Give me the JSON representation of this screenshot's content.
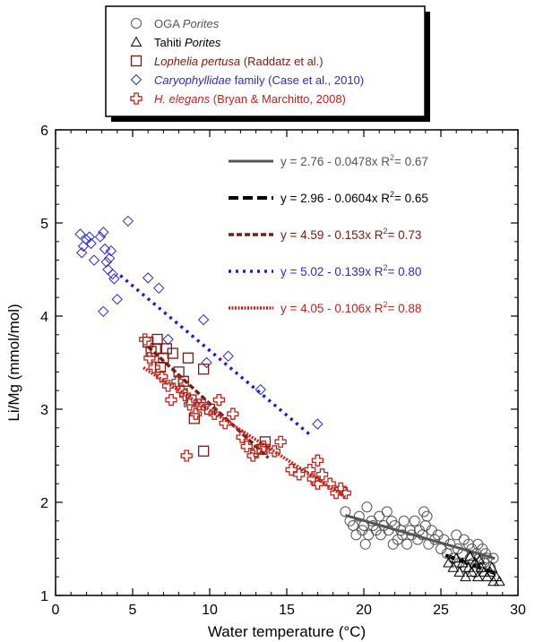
{
  "chart_data": {
    "type": "scatter",
    "title": "",
    "xlabel": "Water temperature (°C)",
    "ylabel": "Li/Mg (mmol/mol)",
    "xlim": [
      0,
      30
    ],
    "ylim": [
      1,
      6
    ],
    "x_ticks": [
      0,
      5,
      10,
      15,
      20,
      25,
      30
    ],
    "y_ticks": [
      1,
      2,
      3,
      4,
      5,
      6
    ],
    "grid": false,
    "legend_placement": "top-center",
    "legend": [
      {
        "marker": "circle",
        "color": "#555555",
        "text": "OGA ",
        "italic_text": "Porites",
        "suffix": ""
      },
      {
        "marker": "triangle",
        "color": "#000000",
        "text": "Tahiti ",
        "italic_text": "Porites",
        "suffix": ""
      },
      {
        "marker": "square",
        "color": "#7a1a10",
        "text": "",
        "italic_text": "Lophelia pertusa",
        "suffix": "  (Raddatz et al.)"
      },
      {
        "marker": "diamond",
        "color": "#2a2ad8",
        "text": "",
        "italic_text": "Caryophyllidae",
        "suffix": " family (Case et al., 2010)"
      },
      {
        "marker": "cross",
        "color": "#c0241c",
        "text": "",
        "italic_text": "H. elegans",
        "suffix": " (Bryan & Marchitto, 2008)"
      }
    ],
    "series": [
      {
        "marker": "diamond",
        "color": "#2a2ad8",
        "points": [
          [
            1.6,
            4.88
          ],
          [
            1.8,
            4.75
          ],
          [
            1.7,
            4.68
          ],
          [
            2.0,
            4.82
          ],
          [
            2.2,
            4.85
          ],
          [
            2.3,
            4.78
          ],
          [
            2.5,
            4.6
          ],
          [
            2.9,
            4.85
          ],
          [
            3.1,
            4.9
          ],
          [
            3.2,
            4.72
          ],
          [
            3.3,
            4.58
          ],
          [
            3.5,
            4.62
          ],
          [
            3.4,
            4.5
          ],
          [
            3.6,
            4.7
          ],
          [
            3.7,
            4.45
          ],
          [
            3.8,
            4.4
          ],
          [
            4.0,
            4.18
          ],
          [
            3.1,
            4.05
          ],
          [
            4.7,
            5.02
          ],
          [
            6.0,
            4.41
          ],
          [
            6.7,
            4.3
          ],
          [
            7.3,
            3.75
          ],
          [
            9.6,
            3.96
          ],
          [
            9.8,
            3.5
          ],
          [
            11.2,
            3.57
          ],
          [
            13.3,
            3.21
          ],
          [
            17.0,
            2.84
          ]
        ]
      },
      {
        "marker": "square",
        "color": "#7a1a10",
        "points": [
          [
            6.0,
            3.72
          ],
          [
            6.2,
            3.62
          ],
          [
            6.5,
            3.65
          ],
          [
            6.6,
            3.75
          ],
          [
            6.8,
            3.45
          ],
          [
            7.0,
            3.55
          ],
          [
            7.2,
            3.65
          ],
          [
            7.6,
            3.6
          ],
          [
            8.0,
            3.4
          ],
          [
            8.3,
            3.3
          ],
          [
            8.6,
            3.55
          ],
          [
            8.8,
            3.1
          ],
          [
            9.0,
            2.9
          ],
          [
            9.6,
            3.43
          ],
          [
            9.6,
            2.55
          ],
          [
            10.0,
            3.0
          ],
          [
            13.4,
            2.57
          ],
          [
            13.6,
            2.65
          ]
        ]
      },
      {
        "marker": "cross",
        "color": "#c0241c",
        "points": [
          [
            5.8,
            3.75
          ],
          [
            6.1,
            3.55
          ],
          [
            6.4,
            3.45
          ],
          [
            6.9,
            3.35
          ],
          [
            7.3,
            3.25
          ],
          [
            7.5,
            3.1
          ],
          [
            7.9,
            3.3
          ],
          [
            8.2,
            3.2
          ],
          [
            8.4,
            3.15
          ],
          [
            8.7,
            3.05
          ],
          [
            9.1,
            2.95
          ],
          [
            9.3,
            3.05
          ],
          [
            9.6,
            3.05
          ],
          [
            10.3,
            2.95
          ],
          [
            10.6,
            3.1
          ],
          [
            11.0,
            2.85
          ],
          [
            11.5,
            2.95
          ],
          [
            8.5,
            2.5
          ],
          [
            12.1,
            2.7
          ],
          [
            12.4,
            2.6
          ],
          [
            12.8,
            2.5
          ],
          [
            13.0,
            2.55
          ],
          [
            13.5,
            2.6
          ],
          [
            14.2,
            2.55
          ],
          [
            14.6,
            2.65
          ],
          [
            15.3,
            2.35
          ],
          [
            15.8,
            2.3
          ],
          [
            16.5,
            2.35
          ],
          [
            16.7,
            2.25
          ],
          [
            17.0,
            2.2
          ],
          [
            17.3,
            2.3
          ],
          [
            17.0,
            2.45
          ],
          [
            17.8,
            2.2
          ],
          [
            18.2,
            2.1
          ],
          [
            18.5,
            2.15
          ],
          [
            18.8,
            2.1
          ]
        ]
      },
      {
        "marker": "circle",
        "color": "#555555",
        "points": [
          [
            18.8,
            1.9
          ],
          [
            19.1,
            1.8
          ],
          [
            19.3,
            1.75
          ],
          [
            19.5,
            1.65
          ],
          [
            19.7,
            1.85
          ],
          [
            19.9,
            1.7
          ],
          [
            20.0,
            1.75
          ],
          [
            20.2,
            1.95
          ],
          [
            20.3,
            1.65
          ],
          [
            20.5,
            1.8
          ],
          [
            20.6,
            1.75
          ],
          [
            20.8,
            1.7
          ],
          [
            21.0,
            1.85
          ],
          [
            21.1,
            1.65
          ],
          [
            21.3,
            1.75
          ],
          [
            21.5,
            1.9
          ],
          [
            21.6,
            1.7
          ],
          [
            21.8,
            1.8
          ],
          [
            22.0,
            1.75
          ],
          [
            22.2,
            1.6
          ],
          [
            22.4,
            1.7
          ],
          [
            22.6,
            1.8
          ],
          [
            22.8,
            1.55
          ],
          [
            23.0,
            1.7
          ],
          [
            23.1,
            1.65
          ],
          [
            23.3,
            1.8
          ],
          [
            23.5,
            1.6
          ],
          [
            23.6,
            1.7
          ],
          [
            23.8,
            1.65
          ],
          [
            24.0,
            1.75
          ],
          [
            24.1,
            1.85
          ],
          [
            24.2,
            1.55
          ],
          [
            24.4,
            1.7
          ],
          [
            24.6,
            1.6
          ],
          [
            24.8,
            1.65
          ],
          [
            25.0,
            1.5
          ],
          [
            25.2,
            1.6
          ],
          [
            25.4,
            1.45
          ],
          [
            25.6,
            1.55
          ],
          [
            25.8,
            1.4
          ],
          [
            26.0,
            1.65
          ],
          [
            26.1,
            1.5
          ],
          [
            26.2,
            1.35
          ],
          [
            26.4,
            1.45
          ],
          [
            26.5,
            1.6
          ],
          [
            26.6,
            1.3
          ],
          [
            26.8,
            1.55
          ],
          [
            26.9,
            1.4
          ],
          [
            27.0,
            1.5
          ],
          [
            27.1,
            1.35
          ],
          [
            27.2,
            1.25
          ],
          [
            27.3,
            1.45
          ],
          [
            27.4,
            1.55
          ],
          [
            27.5,
            1.4
          ],
          [
            27.6,
            1.3
          ],
          [
            27.7,
            1.5
          ],
          [
            27.8,
            1.35
          ],
          [
            27.9,
            1.45
          ],
          [
            28.0,
            1.4
          ],
          [
            28.2,
            1.3
          ],
          [
            28.4,
            1.4
          ],
          [
            20.1,
            1.55
          ],
          [
            21.9,
            1.55
          ],
          [
            23.9,
            1.9
          ],
          [
            22.5,
            1.65
          ]
        ]
      },
      {
        "marker": "triangle",
        "color": "#000000",
        "points": [
          [
            25.5,
            1.35
          ],
          [
            25.8,
            1.3
          ],
          [
            26.0,
            1.4
          ],
          [
            26.2,
            1.25
          ],
          [
            26.4,
            1.35
          ],
          [
            26.6,
            1.2
          ],
          [
            26.8,
            1.3
          ],
          [
            27.0,
            1.25
          ],
          [
            27.2,
            1.35
          ],
          [
            27.4,
            1.2
          ],
          [
            27.6,
            1.3
          ],
          [
            27.8,
            1.25
          ],
          [
            28.0,
            1.2
          ],
          [
            28.2,
            1.25
          ],
          [
            28.4,
            1.15
          ],
          [
            28.6,
            1.2
          ],
          [
            28.8,
            1.15
          ],
          [
            26.9,
            1.42
          ],
          [
            27.5,
            1.38
          ],
          [
            28.3,
            1.3
          ]
        ]
      }
    ],
    "fit_lines": [
      {
        "equation": "y = 2.76 - 0.0478x",
        "r2": "0.67",
        "text_color": "#555555",
        "line_color": "#555555",
        "style": "solid",
        "a": 2.76,
        "b": -0.0478,
        "x_range": [
          18.8,
          28.5
        ]
      },
      {
        "equation": "y = 2.96 - 0.0604x",
        "r2": "0.65",
        "text_color": "#000000",
        "line_color": "#000000",
        "style": "longdash",
        "a": 2.96,
        "b": -0.0604,
        "x_range": [
          25.3,
          28.5
        ]
      },
      {
        "equation": "y = 4.59 - 0.153x",
        "r2": "0.73",
        "text_color": "#7a1a10",
        "line_color": "#7a1a10",
        "style": "dash",
        "a": 4.59,
        "b": -0.153,
        "x_range": [
          6.0,
          13.8
        ]
      },
      {
        "equation": "y = 5.02 - 0.139x",
        "r2": "0.80",
        "text_color": "#2a2ad8",
        "line_color": "#1a1ae0",
        "style": "dot",
        "a": 5.02,
        "b": -0.139,
        "x_range": [
          4.2,
          16.5
        ]
      },
      {
        "equation": "y = 4.05 - 0.106x",
        "r2": "0.88",
        "text_color": "#c0241c",
        "line_color": "#c0241c",
        "style": "densedot",
        "a": 4.05,
        "b": -0.106,
        "x_range": [
          5.7,
          18.8
        ]
      }
    ]
  }
}
